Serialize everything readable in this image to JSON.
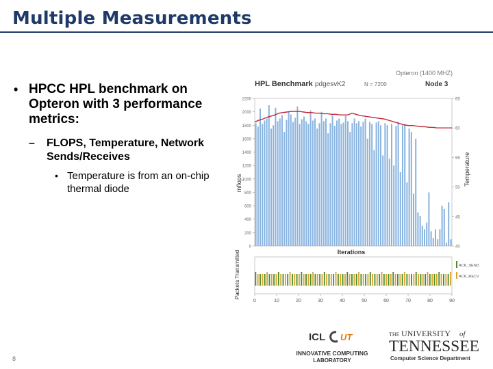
{
  "slide": {
    "title": "Multiple Measurements",
    "page_number": "8"
  },
  "bullets": {
    "level1": "HPCC HPL benchmark on Opteron with 3 performance metrics:",
    "level2": "FLOPS, Temperature, Network Sends/Receives",
    "level3": "Temperature is from an on-chip thermal diode"
  },
  "chart_data": [
    {
      "type": "bar",
      "title": "HPL Benchmark",
      "subtitle_left": "pdgesvK2",
      "subtitle_mid": "N = 7200",
      "subtitle_right_top": "Opteron (1400 MHZ)",
      "subtitle_right": "Node 3",
      "ylabel": "mflops",
      "y2label": "Temperature",
      "xlabel": "Iterations",
      "ylim": [
        0,
        2200
      ],
      "y2lim": [
        40,
        65
      ],
      "yticks": [
        "0",
        "200",
        "400",
        "600",
        "800",
        "1000",
        "1200",
        "1400",
        "1600",
        "1800",
        "2000",
        "2200"
      ],
      "y2ticks": [
        "40",
        "45",
        "50",
        "55",
        "60",
        "65"
      ],
      "bar_color": "#8ab4e0",
      "line_color": "#c0283a",
      "values": [
        1830,
        1780,
        2050,
        1820,
        1870,
        1900,
        2100,
        1750,
        1800,
        2060,
        1860,
        1900,
        1950,
        1700,
        1880,
        2000,
        1960,
        1850,
        1910,
        2080,
        1820,
        1890,
        1930,
        1860,
        1820,
        2020,
        1870,
        1900,
        1750,
        1830,
        2000,
        1860,
        1900,
        1680,
        1830,
        1950,
        1790,
        1870,
        1900,
        1820,
        1840,
        1940,
        1860,
        1700,
        1830,
        1900,
        1830,
        1860,
        1780,
        1850,
        1900,
        1600,
        1850,
        1820,
        1430,
        1840,
        1860,
        1800,
        1350,
        1830,
        1800,
        1300,
        1820,
        1200,
        1790,
        1850,
        1100,
        1800,
        1820,
        950,
        1750,
        1700,
        780,
        1600,
        500,
        450,
        300,
        250,
        350,
        800,
        220,
        120,
        250,
        100,
        250,
        600,
        550,
        50,
        650,
        100
      ],
      "temperature": [
        61.0,
        61.3,
        61.5,
        61.8,
        62.0,
        62.2,
        62.5,
        62.6,
        62.7,
        62.8,
        62.8,
        62.8,
        62.7,
        62.6,
        62.6,
        62.5,
        62.5,
        62.4,
        62.4,
        62.3,
        62.3,
        62.2,
        62.2,
        62.2,
        62.5,
        62.3,
        62.1,
        62.0,
        61.9,
        61.8,
        61.7,
        61.6,
        61.5,
        61.3,
        61.1,
        60.9,
        60.7,
        60.5,
        60.4,
        60.4,
        60.3,
        60.2,
        60.2,
        60.1,
        60.1,
        60.0,
        60.0,
        60.0
      ]
    },
    {
      "type": "bar",
      "ylabel": "Packets Transmitted",
      "xticks": [
        "0",
        "10",
        "20",
        "30",
        "40",
        "50",
        "60",
        "70",
        "80",
        "90"
      ],
      "xlim": [
        0,
        90
      ],
      "series": [
        {
          "name": "ACK_SEND",
          "color": "#4e8a2c"
        },
        {
          "name": "ACK_RECV",
          "color": "#d9a52a"
        }
      ]
    }
  ],
  "logos": {
    "icl": "ICL",
    "icl_ut": "UT",
    "icl_line1": "INNOVATIVE COMPUTING",
    "icl_line2": "LABORATORY",
    "utk_the": "THE",
    "utk_university": "UNIVERSITY",
    "utk_of": "of",
    "utk_tennessee": "TENNESSEE",
    "utk_dept": "Computer Science Department"
  }
}
